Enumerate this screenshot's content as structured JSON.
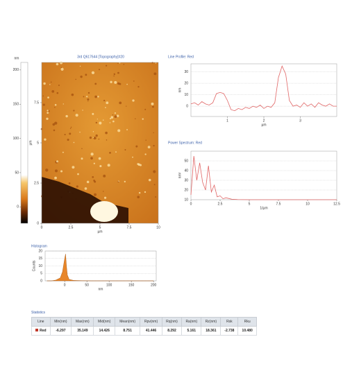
{
  "chart_data": [
    {
      "type": "colorbar",
      "unit": "nm",
      "ylim": [
        -24,
        211
      ],
      "yticks": [
        0,
        50,
        100,
        150,
        200
      ]
    },
    {
      "type": "image",
      "title": "3rd Q617644 [Topography]#20",
      "xlabel": "µm",
      "ylabel": "µm",
      "xlim": [
        0,
        10
      ],
      "ylim": [
        0,
        10
      ],
      "xticks": [
        0,
        2.5,
        5,
        7.5,
        10
      ],
      "yticks": [
        0,
        2.5,
        5,
        7.5
      ]
    },
    {
      "type": "line",
      "title": "Line Profile: Red",
      "xlabel": "µm",
      "ylabel": "nm",
      "color": "#e06464",
      "grid": true,
      "x": [
        0,
        0.1,
        0.2,
        0.3,
        0.4,
        0.5,
        0.6,
        0.7,
        0.8,
        0.9,
        1.0,
        1.1,
        1.2,
        1.3,
        1.4,
        1.5,
        1.6,
        1.7,
        1.8,
        1.9,
        2.0,
        2.1,
        2.2,
        2.3,
        2.4,
        2.5,
        2.6,
        2.7,
        2.8,
        2.9,
        3.0,
        3.1,
        3.2,
        3.3,
        3.4,
        3.5,
        3.6,
        3.7,
        3.8,
        3.9,
        4.0
      ],
      "values": [
        2,
        3,
        1,
        4,
        2,
        1,
        3,
        11,
        12,
        11,
        5,
        -3,
        -4,
        -2,
        -3,
        -1,
        -2,
        0,
        -1,
        1,
        -2,
        0,
        -1,
        3,
        25,
        35,
        28,
        5,
        0,
        1,
        -1,
        3,
        0,
        2,
        -1,
        3,
        1,
        0,
        2,
        0,
        0
      ],
      "xlim": [
        0,
        4
      ],
      "ylim": [
        -9,
        37
      ],
      "xticks": [
        1,
        2,
        3
      ],
      "yticks": [
        0,
        10,
        20,
        30
      ]
    },
    {
      "type": "line",
      "title": "Power Spectrum: Red",
      "xlabel": "1/µm",
      "ylabel": "nm²",
      "color": "#e06464",
      "grid": true,
      "x": [
        0,
        0.25,
        0.5,
        0.75,
        1,
        1.25,
        1.5,
        1.75,
        2,
        2.25,
        2.5,
        2.75,
        3,
        3.5,
        4,
        5,
        6,
        7,
        8,
        9,
        10,
        11,
        12,
        12.5
      ],
      "values": [
        15,
        55,
        30,
        48,
        28,
        20,
        45,
        18,
        25,
        13,
        14,
        11,
        12,
        10.5,
        10.2,
        10,
        10,
        10,
        10,
        10,
        10,
        10,
        10,
        10
      ],
      "xlim": [
        0,
        12.5
      ],
      "ylim": [
        10,
        60
      ],
      "xticks": [
        0,
        2.5,
        5,
        7.5,
        10,
        12.5
      ],
      "yticks": [
        10,
        20,
        30,
        40,
        50
      ]
    },
    {
      "type": "area",
      "title": "Histogram",
      "xlabel": "nm",
      "ylabel": "Counts",
      "color": "#e8862a",
      "grid": true,
      "x": [
        -40,
        -30,
        -20,
        -10,
        -5,
        0,
        2,
        4,
        6,
        10,
        20,
        40,
        60,
        100,
        150,
        200
      ],
      "values": [
        0,
        0,
        0.5,
        2,
        6,
        15,
        18,
        10,
        4,
        1,
        0.3,
        0.1,
        0,
        0,
        0,
        0
      ],
      "xlim": [
        -44,
        206
      ],
      "ylim": [
        0,
        20
      ],
      "xticks": [
        0,
        50,
        100,
        150,
        200
      ],
      "yticks": [
        0,
        5,
        10,
        15,
        20
      ]
    }
  ],
  "statistics": {
    "title": "Statistics",
    "header": [
      "Line",
      "Min(nm)",
      "Max(nm)",
      "Mid(nm)",
      "Mean(nm)",
      "Rpv(nm)",
      "Rq(nm)",
      "Ra(nm)",
      "Rz(nm)",
      "Rsk",
      "Rku"
    ],
    "rows": [
      [
        "Red",
        "-6.297",
        "35.149",
        "14.426",
        "8.751",
        "41.446",
        "8.292",
        "5.161",
        "18.361",
        "-2.738",
        "10.480"
      ]
    ]
  }
}
